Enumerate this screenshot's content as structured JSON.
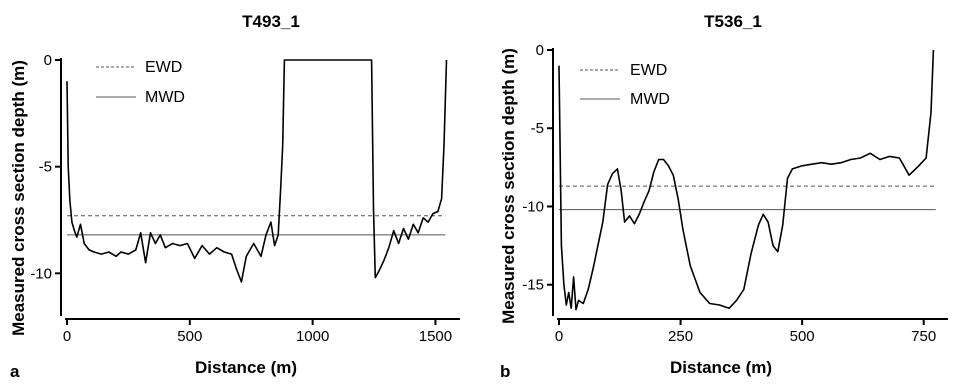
{
  "chart_data": [
    {
      "type": "line",
      "panel_label": "a",
      "title": "T493_1",
      "xlabel": "Distance (m)",
      "ylabel": "Measured cross section depth (m)",
      "xlim": [
        0,
        1600
      ],
      "ylim": [
        -12,
        0
      ],
      "xticks": [
        0,
        500,
        1000,
        1500
      ],
      "yticks": [
        0,
        -5,
        -10
      ],
      "legend": {
        "position": "top-left",
        "entries": [
          "EWD",
          "MWD"
        ]
      },
      "series": [
        {
          "name": "EWD",
          "style": "dashed",
          "color": "#555555",
          "x": [
            0,
            1540
          ],
          "y": [
            -7.3,
            -7.3
          ]
        },
        {
          "name": "MWD",
          "style": "solid",
          "color": "#555555",
          "x": [
            0,
            1540
          ],
          "y": [
            -8.2,
            -8.2
          ]
        },
        {
          "name": "",
          "style": "solid",
          "color": "#000000",
          "x": [
            0,
            5,
            12,
            20,
            30,
            40,
            55,
            70,
            90,
            110,
            140,
            170,
            200,
            220,
            250,
            280,
            300,
            320,
            340,
            360,
            380,
            400,
            430,
            460,
            490,
            520,
            550,
            580,
            610,
            640,
            670,
            690,
            710,
            730,
            760,
            790,
            810,
            830,
            845,
            860,
            870,
            878,
            885,
            1240,
            1248,
            1255,
            1270,
            1290,
            1310,
            1330,
            1350,
            1370,
            1390,
            1410,
            1430,
            1450,
            1470,
            1490,
            1510,
            1525,
            1535,
            1545
          ],
          "y": [
            -1.0,
            -5.0,
            -6.6,
            -7.6,
            -8.0,
            -8.3,
            -7.7,
            -8.6,
            -8.9,
            -9.0,
            -9.1,
            -9.0,
            -9.2,
            -9.0,
            -9.1,
            -8.9,
            -8.1,
            -9.5,
            -8.1,
            -8.6,
            -8.2,
            -8.8,
            -8.6,
            -8.7,
            -8.6,
            -9.3,
            -8.7,
            -9.1,
            -8.8,
            -9.0,
            -9.1,
            -9.8,
            -10.4,
            -9.2,
            -8.6,
            -9.2,
            -8.2,
            -7.6,
            -8.7,
            -8.2,
            -6.0,
            -4.0,
            0.0,
            0.0,
            -7.0,
            -10.2,
            -9.9,
            -9.4,
            -8.8,
            -8.0,
            -8.6,
            -7.9,
            -8.4,
            -7.7,
            -8.1,
            -7.4,
            -7.6,
            -7.2,
            -7.1,
            -6.5,
            -4.0,
            0.0
          ]
        }
      ]
    },
    {
      "type": "line",
      "panel_label": "b",
      "title": "T536_1",
      "xlabel": "Distance (m)",
      "ylabel": "Measured cross section depth (m)",
      "xlim": [
        0,
        800
      ],
      "ylim": [
        -17,
        0
      ],
      "xticks": [
        0,
        250,
        500,
        750
      ],
      "yticks": [
        0,
        -5,
        -10,
        -15
      ],
      "legend": {
        "position": "top-left",
        "entries": [
          "EWD",
          "MWD"
        ]
      },
      "series": [
        {
          "name": "EWD",
          "style": "dashed",
          "color": "#555555",
          "x": [
            0,
            775
          ],
          "y": [
            -8.7,
            -8.7
          ]
        },
        {
          "name": "MWD",
          "style": "solid",
          "color": "#555555",
          "x": [
            0,
            775
          ],
          "y": [
            -10.2,
            -10.2
          ]
        },
        {
          "name": "",
          "style": "solid",
          "color": "#000000",
          "x": [
            0,
            5,
            10,
            15,
            20,
            25,
            30,
            35,
            40,
            50,
            60,
            70,
            80,
            90,
            100,
            110,
            120,
            128,
            135,
            145,
            155,
            165,
            175,
            185,
            195,
            205,
            215,
            225,
            235,
            245,
            255,
            270,
            290,
            310,
            330,
            350,
            365,
            380,
            395,
            410,
            420,
            430,
            440,
            450,
            460,
            470,
            480,
            500,
            520,
            540,
            560,
            580,
            600,
            620,
            640,
            660,
            680,
            700,
            720,
            740,
            755,
            765,
            770
          ],
          "y": [
            -1.0,
            -12.5,
            -15.0,
            -16.3,
            -15.5,
            -16.5,
            -14.5,
            -16.6,
            -16.0,
            -16.2,
            -15.3,
            -14.0,
            -12.5,
            -11.0,
            -8.6,
            -7.9,
            -7.6,
            -9.0,
            -11.0,
            -10.6,
            -11.1,
            -10.5,
            -9.7,
            -9.0,
            -7.8,
            -7.0,
            -7.0,
            -7.4,
            -8.0,
            -9.5,
            -11.5,
            -13.8,
            -15.5,
            -16.2,
            -16.3,
            -16.5,
            -16.0,
            -15.3,
            -13.0,
            -11.2,
            -10.5,
            -11.0,
            -12.5,
            -12.9,
            -11.2,
            -8.2,
            -7.6,
            -7.4,
            -7.3,
            -7.2,
            -7.3,
            -7.2,
            -7.0,
            -6.9,
            -6.6,
            -7.0,
            -6.8,
            -6.9,
            -8.0,
            -7.4,
            -6.9,
            -4.0,
            0.0
          ]
        }
      ]
    }
  ]
}
